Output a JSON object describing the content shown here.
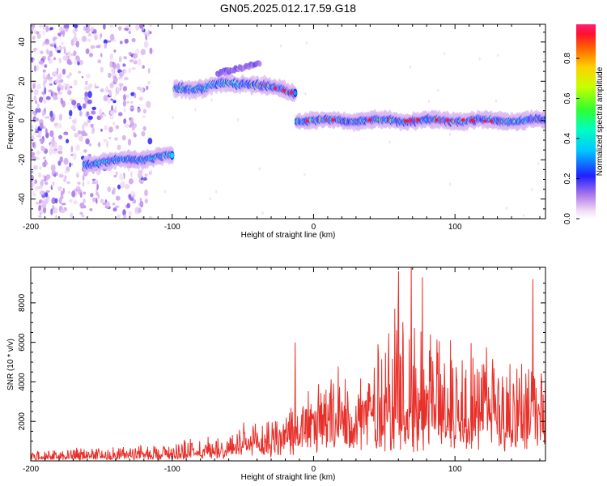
{
  "chart_data": [
    {
      "type": "heatmap",
      "title": "GN05.2025.012.17.59.G18",
      "xlabel": "Height of straight line (km)",
      "ylabel": "Frequency (Hz)",
      "xlim": [
        -200,
        164
      ],
      "ylim": [
        -50,
        49
      ],
      "xticks": [
        -200,
        -100,
        0,
        100
      ],
      "yticks": [
        40,
        20,
        0,
        -20,
        -40
      ],
      "noise_region": [
        -200,
        -115
      ],
      "segments": [
        {
          "x_start": -162,
          "x_end": -100,
          "freq_start": -22,
          "freq_end": -18
        },
        {
          "x_start": -98,
          "x_end": -50,
          "freq_start": 16,
          "freq_end": 19
        },
        {
          "x_start": -50,
          "x_end": -13,
          "freq_start": 20,
          "freq_end": 14
        },
        {
          "x_start": -12,
          "x_end": 164,
          "freq_start": 0,
          "freq_end": 0
        }
      ],
      "upper_branch": {
        "x_start": -68,
        "x_end": -38,
        "freq_start": 24,
        "freq_end": 29
      },
      "colorbar": {
        "label": "Normalized spectral amplitude",
        "ticks": [
          "0.0",
          "0.2",
          "0.4",
          "0.6",
          "0.8"
        ],
        "range": [
          0,
          0.97
        ]
      }
    },
    {
      "type": "line",
      "xlabel": "Height of straight line (km)",
      "ylabel": "SNR (10 * v/v)",
      "xlim": [
        -200,
        164
      ],
      "ylim": [
        0,
        9800
      ],
      "xticks": [
        -200,
        -100,
        0,
        100
      ],
      "yticks": [
        2000,
        4000,
        6000,
        8000
      ],
      "color": "#e8302a",
      "envelope": [
        {
          "x": -200,
          "base": 120,
          "peak": 600
        },
        {
          "x": -150,
          "base": 150,
          "peak": 700
        },
        {
          "x": -110,
          "base": 250,
          "peak": 900
        },
        {
          "x": -60,
          "base": 450,
          "peak": 1600
        },
        {
          "x": -25,
          "base": 800,
          "peak": 2600
        },
        {
          "x": 0,
          "base": 1300,
          "peak": 4000
        },
        {
          "x": 30,
          "base": 1700,
          "peak": 5200
        },
        {
          "x": 60,
          "base": 2000,
          "peak": 8500
        },
        {
          "x": 100,
          "base": 1800,
          "peak": 7000
        },
        {
          "x": 130,
          "base": 1700,
          "peak": 6400
        },
        {
          "x": 164,
          "base": 1500,
          "peak": 5000
        }
      ],
      "spikes": [
        {
          "x": -13,
          "y": 6000
        },
        {
          "x": 60,
          "y": 9600
        },
        {
          "x": 69,
          "y": 9850
        },
        {
          "x": 77,
          "y": 9300
        },
        {
          "x": 155,
          "y": 9200
        }
      ]
    }
  ]
}
